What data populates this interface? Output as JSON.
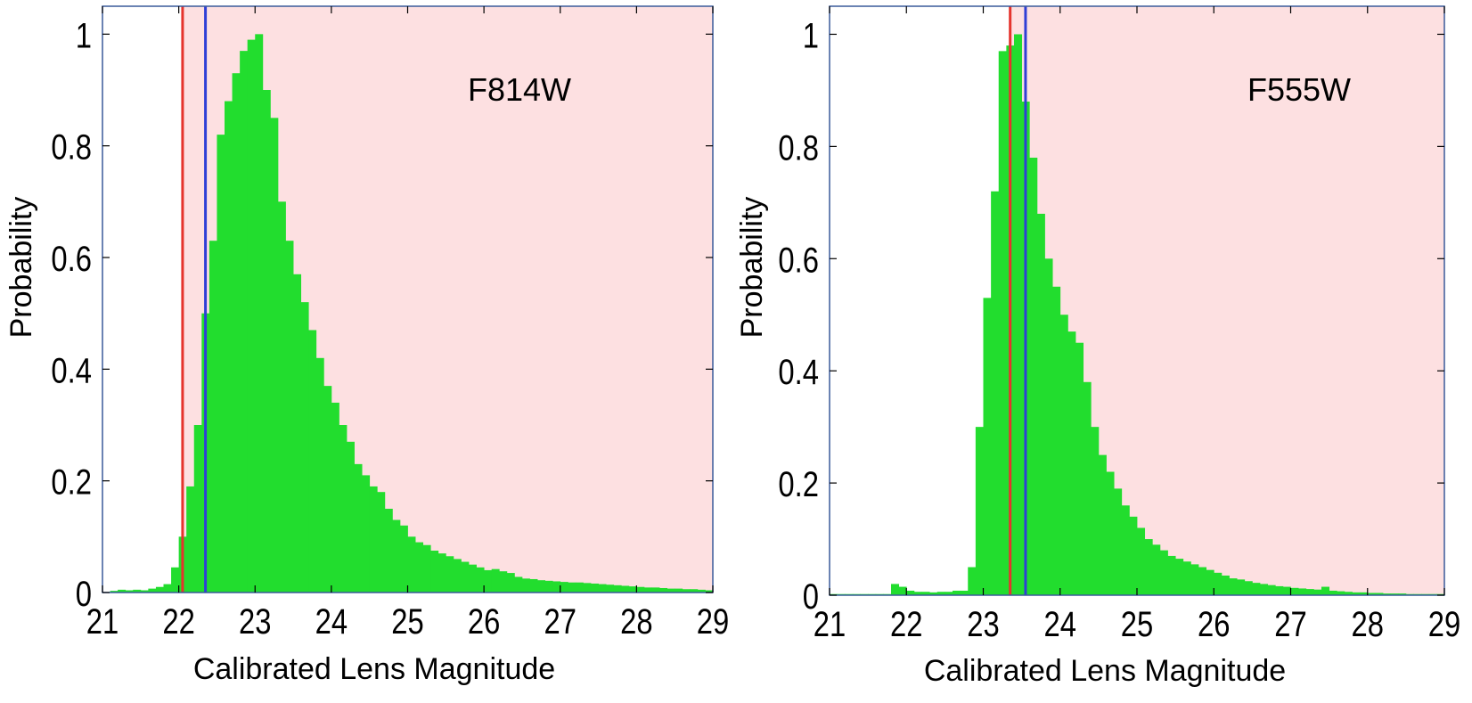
{
  "chart_data": [
    {
      "type": "bar",
      "annotation": "F814W",
      "xlabel": "Calibrated Lens Magnitude",
      "ylabel": "Probability",
      "xlim": [
        21,
        29
      ],
      "ylim": [
        0,
        1.05
      ],
      "xticks": [
        "21",
        "22",
        "23",
        "24",
        "25",
        "26",
        "27",
        "28",
        "29"
      ],
      "yticks": [
        "0",
        "0.2",
        "0.4",
        "0.6",
        "0.8",
        "1"
      ],
      "bin_width": 0.1,
      "bin_start": [
        21.0,
        21.1,
        21.2,
        21.3,
        21.4,
        21.5,
        21.6,
        21.7,
        21.8,
        21.9,
        22.0,
        22.1,
        22.2,
        22.3,
        22.4,
        22.5,
        22.6,
        22.7,
        22.8,
        22.9,
        23.0,
        23.1,
        23.2,
        23.3,
        23.4,
        23.5,
        23.6,
        23.7,
        23.8,
        23.9,
        24.0,
        24.1,
        24.2,
        24.3,
        24.4,
        24.5,
        24.6,
        24.7,
        24.8,
        24.9,
        25.0,
        25.1,
        25.2,
        25.3,
        25.4,
        25.5,
        25.6,
        25.7,
        25.8,
        25.9,
        26.0,
        26.1,
        26.2,
        26.3,
        26.4,
        26.5,
        26.6,
        26.7,
        26.8,
        26.9,
        27.0,
        27.1,
        27.2,
        27.3,
        27.4,
        27.5,
        27.6,
        27.7,
        27.8,
        27.9,
        28.0,
        28.1,
        28.2,
        28.3,
        28.4,
        28.5,
        28.6,
        28.7,
        28.8,
        28.9
      ],
      "values": [
        0,
        0.003,
        0.005,
        0.004,
        0.005,
        0.004,
        0.007,
        0.01,
        0.015,
        0.045,
        0.1,
        0.19,
        0.3,
        0.5,
        0.63,
        0.82,
        0.88,
        0.93,
        0.97,
        0.99,
        1.0,
        0.9,
        0.85,
        0.7,
        0.63,
        0.57,
        0.52,
        0.47,
        0.42,
        0.37,
        0.34,
        0.3,
        0.27,
        0.23,
        0.21,
        0.19,
        0.18,
        0.15,
        0.13,
        0.12,
        0.1,
        0.09,
        0.085,
        0.075,
        0.07,
        0.065,
        0.06,
        0.055,
        0.05,
        0.045,
        0.04,
        0.042,
        0.038,
        0.035,
        0.028,
        0.025,
        0.024,
        0.022,
        0.021,
        0.02,
        0.019,
        0.018,
        0.018,
        0.017,
        0.016,
        0.015,
        0.014,
        0.013,
        0.012,
        0.011,
        0.01,
        0.009,
        0.009,
        0.008,
        0.007,
        0.007,
        0.006,
        0.006,
        0.005,
        0.004
      ],
      "vlines": [
        {
          "x": 22.05,
          "color": "#e5342d"
        },
        {
          "x": 22.35,
          "color": "#2f3fd6"
        }
      ],
      "shade_from": 22.05,
      "colors": {
        "bar": "#22dd2e",
        "shade": "#fde0e1",
        "frame": "#3a5a9a"
      }
    },
    {
      "type": "bar",
      "annotation": "F555W",
      "xlabel": "Calibrated Lens Magnitude",
      "ylabel": "Probability",
      "xlim": [
        21,
        29
      ],
      "ylim": [
        0,
        1.05
      ],
      "xticks": [
        "21",
        "22",
        "23",
        "24",
        "25",
        "26",
        "27",
        "28",
        "29"
      ],
      "yticks": [
        "0",
        "0.2",
        "0.4",
        "0.6",
        "0.8",
        "1"
      ],
      "bin_width": 0.1,
      "bin_start": [
        21.0,
        21.1,
        21.2,
        21.3,
        21.4,
        21.5,
        21.6,
        21.7,
        21.8,
        21.9,
        22.0,
        22.1,
        22.2,
        22.3,
        22.4,
        22.5,
        22.6,
        22.7,
        22.8,
        22.9,
        23.0,
        23.1,
        23.2,
        23.3,
        23.4,
        23.5,
        23.6,
        23.7,
        23.8,
        23.9,
        24.0,
        24.1,
        24.2,
        24.3,
        24.4,
        24.5,
        24.6,
        24.7,
        24.8,
        24.9,
        25.0,
        25.1,
        25.2,
        25.3,
        25.4,
        25.5,
        25.6,
        25.7,
        25.8,
        25.9,
        26.0,
        26.1,
        26.2,
        26.3,
        26.4,
        26.5,
        26.6,
        26.7,
        26.8,
        26.9,
        27.0,
        27.1,
        27.2,
        27.3,
        27.4,
        27.5,
        27.6,
        27.7,
        27.8,
        27.9,
        28.0,
        28.1,
        28.2,
        28.3,
        28.4,
        28.5,
        28.6,
        28.7,
        28.8,
        28.9
      ],
      "values": [
        0.002,
        0.002,
        0.002,
        0.002,
        0.002,
        0.002,
        0.002,
        0.002,
        0.02,
        0.015,
        0.008,
        0.006,
        0.006,
        0.005,
        0.006,
        0.006,
        0.008,
        0.008,
        0.05,
        0.3,
        0.53,
        0.72,
        0.97,
        0.98,
        1.0,
        0.88,
        0.78,
        0.68,
        0.6,
        0.55,
        0.5,
        0.47,
        0.45,
        0.38,
        0.3,
        0.25,
        0.22,
        0.19,
        0.16,
        0.14,
        0.12,
        0.1,
        0.09,
        0.08,
        0.07,
        0.065,
        0.06,
        0.055,
        0.05,
        0.045,
        0.04,
        0.035,
        0.03,
        0.028,
        0.025,
        0.022,
        0.02,
        0.018,
        0.016,
        0.015,
        0.013,
        0.012,
        0.011,
        0.01,
        0.015,
        0.008,
        0.007,
        0.006,
        0.005,
        0.005,
        0.004,
        0.004,
        0.003,
        0.003,
        0.003,
        0.002,
        0.002,
        0.002,
        0.002,
        0.002
      ],
      "vlines": [
        {
          "x": 23.35,
          "color": "#e5342d"
        },
        {
          "x": 23.55,
          "color": "#2f3fd6"
        }
      ],
      "shade_from": 23.35,
      "colors": {
        "bar": "#22dd2e",
        "shade": "#fde0e1",
        "frame": "#3a5a9a"
      }
    }
  ]
}
